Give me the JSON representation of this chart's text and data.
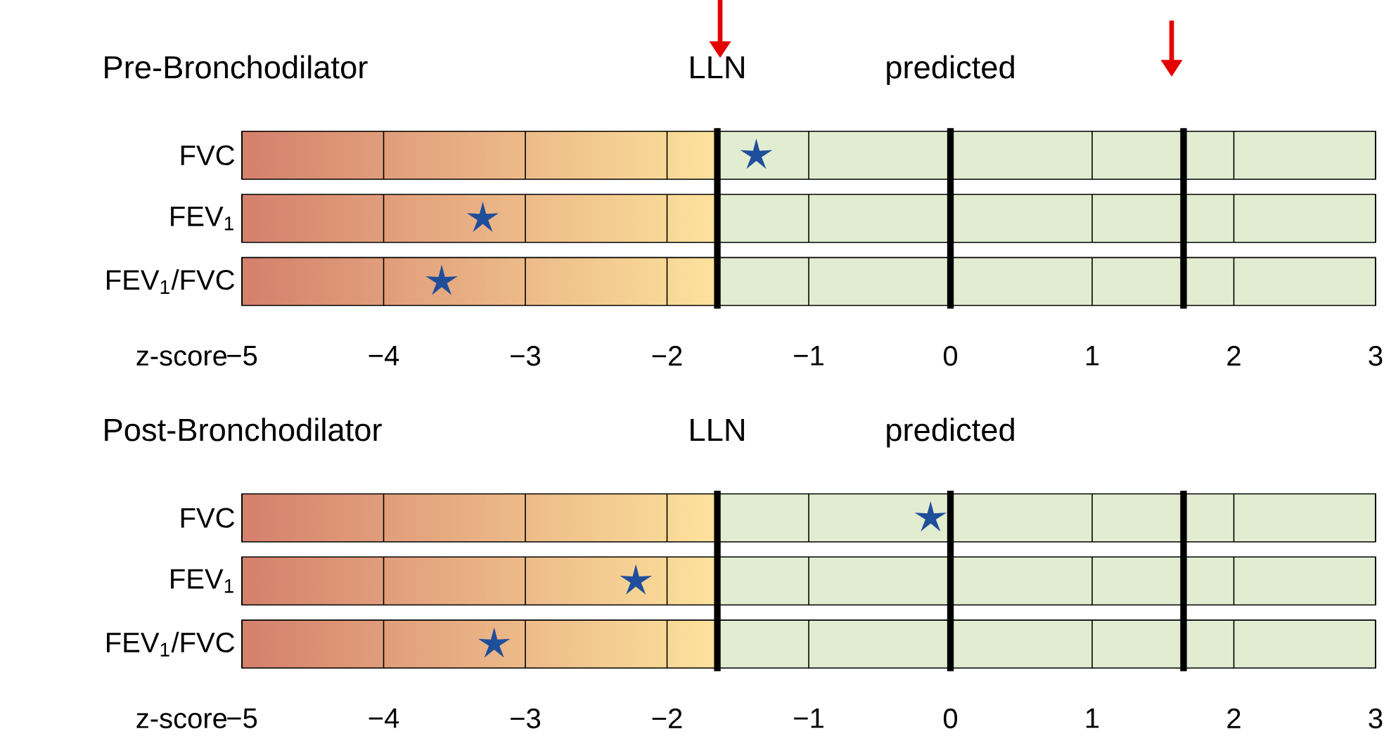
{
  "chart_data": [
    {
      "type": "scatter",
      "orientation": "horizontal",
      "title": "Pre-Bronchodilator",
      "xlabel": "z-score",
      "categories": [
        "FVC",
        "FEV$_{1}$",
        "FEV$_{1}$/FVC"
      ],
      "values": [
        -1.37,
        -3.3,
        -3.59
      ],
      "color": "#1f4e9a",
      "marker": "star",
      "grid": "x",
      "xlim": [
        -5,
        3
      ],
      "xticks": [
        {
          "value": -5,
          "label": "−5"
        },
        {
          "value": -4,
          "label": "−4"
        },
        {
          "value": -3,
          "label": "−3"
        },
        {
          "value": -2,
          "label": "−2"
        },
        {
          "value": -1,
          "label": "−1"
        },
        0,
        1,
        2,
        3
      ],
      "ref_lines": [
        {
          "axis": "x",
          "value": -1.645,
          "label": "LLN"
        },
        {
          "axis": "x",
          "value": 0,
          "label": "predicted"
        },
        {
          "axis": "x",
          "value": 1.645
        }
      ],
      "bands": [
        {
          "axis": "x",
          "from": -5,
          "to": -1.645,
          "color": "#d4806c"
        },
        {
          "axis": "x",
          "from": -1.645,
          "to": 3,
          "color": "#e2ecd0"
        }
      ]
    },
    {
      "type": "scatter",
      "orientation": "horizontal",
      "title": "Post-Bronchodilator",
      "xlabel": "z-score",
      "categories": [
        "FVC",
        "FEV$_{1}$",
        "FEV$_{1}$/FVC"
      ],
      "values": [
        -0.14,
        -2.22,
        -3.22
      ],
      "color": "#1f4e9a",
      "marker": "star",
      "grid": "x",
      "xlim": [
        -5,
        3
      ],
      "xticks": [
        {
          "value": -5,
          "label": "−5"
        },
        {
          "value": -4,
          "label": "−4"
        },
        {
          "value": -3,
          "label": "−3"
        },
        {
          "value": -2,
          "label": "−2"
        },
        {
          "value": -1,
          "label": "−1"
        },
        0,
        1,
        2,
        3
      ],
      "ref_lines": [
        {
          "axis": "x",
          "value": -1.645,
          "label": "LLN"
        },
        {
          "axis": "x",
          "value": 0,
          "label": "predicted"
        },
        {
          "axis": "x",
          "value": 1.645
        }
      ],
      "bands": [
        {
          "axis": "x",
          "from": -5,
          "to": -1.645,
          "color": "#d4806c"
        },
        {
          "axis": "x",
          "from": -1.645,
          "to": 3,
          "color": "#e2ecd0"
        }
      ]
    }
  ]
}
